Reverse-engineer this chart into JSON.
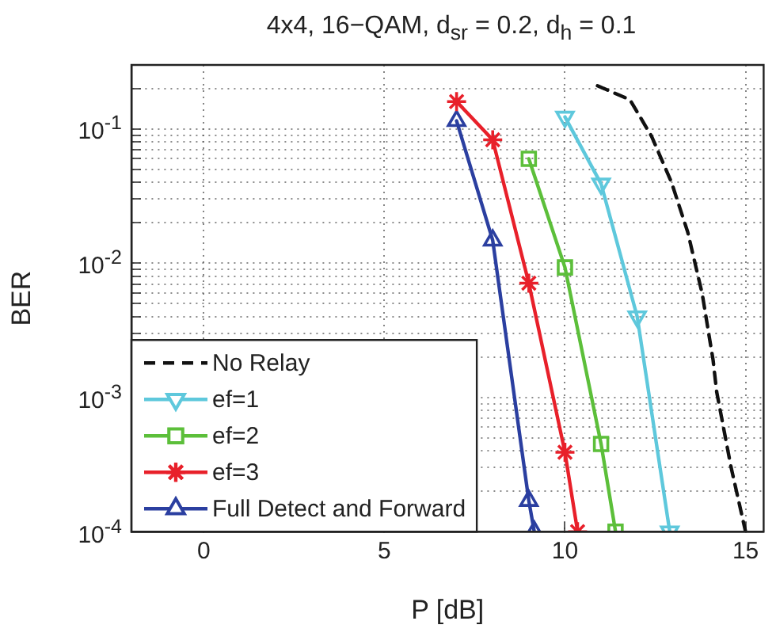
{
  "chart_data": {
    "type": "line",
    "title": "4x4, 16−QAM, d$_{sr}$ = 0.2, d$_{h}$ = 0.1",
    "xlabel": "P [dB]",
    "ylabel": "BER",
    "log": true,
    "grid": true,
    "legend": "bottom left",
    "xlim": [
      -2,
      15.5
    ],
    "xticks": [
      0,
      5,
      10,
      15
    ],
    "ylim": [
      0.0001,
      0.3
    ],
    "yticks": [
      {
        "value": 0.0001,
        "label": "10$^{-4}$"
      },
      {
        "value": 0.0002,
        "label": null
      },
      {
        "value": 0.0003,
        "label": null
      },
      {
        "value": 0.0004,
        "label": null
      },
      {
        "value": 0.0005,
        "label": null
      },
      {
        "value": 0.0006,
        "label": null
      },
      {
        "value": 0.0007,
        "label": null
      },
      {
        "value": 0.0008,
        "label": null
      },
      {
        "value": 0.0009,
        "label": null
      },
      {
        "value": 0.001,
        "label": "10$^{-3}$"
      },
      {
        "value": 0.002,
        "label": null
      },
      {
        "value": 0.003,
        "label": null
      },
      {
        "value": 0.004,
        "label": null
      },
      {
        "value": 0.005,
        "label": null
      },
      {
        "value": 0.006,
        "label": null
      },
      {
        "value": 0.007,
        "label": null
      },
      {
        "value": 0.008,
        "label": null
      },
      {
        "value": 0.009,
        "label": null
      },
      {
        "value": 0.01,
        "label": "10$^{-2}$"
      },
      {
        "value": 0.02,
        "label": null
      },
      {
        "value": 0.03,
        "label": null
      },
      {
        "value": 0.04,
        "label": null
      },
      {
        "value": 0.05,
        "label": null
      },
      {
        "value": 0.06,
        "label": null
      },
      {
        "value": 0.07,
        "label": null
      },
      {
        "value": 0.08,
        "label": null
      },
      {
        "value": 0.09,
        "label": null
      },
      {
        "value": 0.1,
        "label": "10$^{-1}$"
      },
      {
        "value": 0.2,
        "label": null
      }
    ],
    "series": [
      {
        "name": "No Relay",
        "color": "#111111",
        "marker": "none",
        "line_style": "dashed",
        "x": [
          10.9,
          11.8,
          12.4,
          12.95,
          13.4,
          13.8,
          14.1,
          14.2,
          14.6,
          15.0
        ],
        "values": [
          0.21,
          0.165,
          0.088,
          0.04,
          0.017,
          0.0059,
          0.0019,
          0.0011,
          0.0003,
          0.0001
        ]
      },
      {
        "name": "ef=1",
        "color": "#5ec8dc",
        "marker": "triangle-down",
        "line_style": "solid",
        "x": [
          10,
          11,
          12,
          12.9
        ],
        "values": [
          0.123,
          0.039,
          0.004,
          0.0001
        ]
      },
      {
        "name": "ef=2",
        "color": "#5cbf3a",
        "marker": "square",
        "line_style": "solid",
        "x": [
          9,
          10,
          11,
          11.4
        ],
        "values": [
          0.06,
          0.0093,
          0.00045,
          0.0001
        ]
      },
      {
        "name": "ef=3",
        "color": "#e8202a",
        "marker": "cross",
        "line_style": "solid",
        "x": [
          7,
          8,
          9,
          10,
          10.35
        ],
        "values": [
          0.16,
          0.083,
          0.0071,
          0.00039,
          0.0001
        ]
      },
      {
        "name": "Full Detect and Forward",
        "color": "#2b3fa0",
        "marker": "triangle",
        "line_style": "solid",
        "x": [
          7,
          8,
          9,
          9.15
        ],
        "values": [
          0.115,
          0.0148,
          0.00017,
          0.0001
        ]
      }
    ]
  }
}
